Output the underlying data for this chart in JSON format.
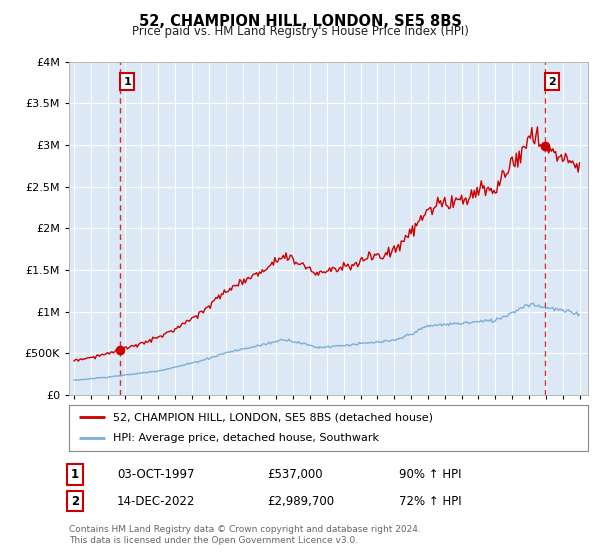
{
  "title": "52, CHAMPION HILL, LONDON, SE5 8BS",
  "subtitle": "Price paid vs. HM Land Registry's House Price Index (HPI)",
  "hpi_label": "HPI: Average price, detached house, Southwark",
  "property_label": "52, CHAMPION HILL, LONDON, SE5 8BS (detached house)",
  "property_color": "#cc0000",
  "hpi_color": "#7bafd4",
  "annotation_box_color": "#cc0000",
  "sale1_date": "03-OCT-1997",
  "sale1_price": "£537,000",
  "sale1_hpi": "90% ↑ HPI",
  "sale2_date": "14-DEC-2022",
  "sale2_price": "£2,989,700",
  "sale2_hpi": "72% ↑ HPI",
  "footer": "Contains HM Land Registry data © Crown copyright and database right 2024.\nThis data is licensed under the Open Government Licence v3.0.",
  "ylim": [
    0,
    4000000
  ],
  "yticks": [
    0,
    500000,
    1000000,
    1500000,
    2000000,
    2500000,
    3000000,
    3500000,
    4000000
  ],
  "chart_bg": "#dce8f5",
  "background_color": "#ffffff",
  "grid_color": "#ffffff",
  "sale1_year": 1997.75,
  "sale1_value": 537000,
  "sale2_year": 2022.95,
  "sale2_value": 2989700,
  "xlim_left": 1994.7,
  "xlim_right": 2025.5
}
